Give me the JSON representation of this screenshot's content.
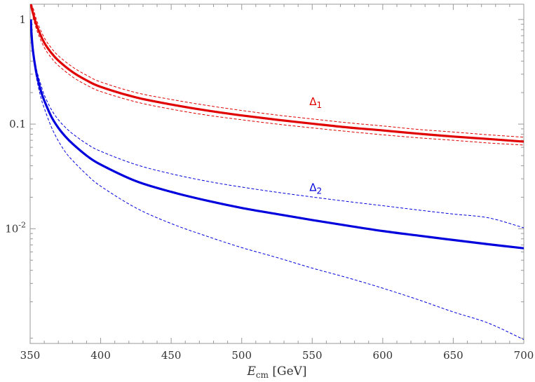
{
  "chart_data": {
    "type": "line",
    "xlabel_main": "E",
    "xlabel_sub": "cm",
    "xlabel_unit": " [GeV]",
    "ylabel": "",
    "xlim": [
      350,
      700
    ],
    "ylim": [
      0.0008,
      1.4
    ],
    "yscale": "log",
    "grid": false,
    "x_ticks": [
      350,
      400,
      450,
      500,
      550,
      600,
      650,
      700
    ],
    "y_ticks": [
      {
        "value": 1,
        "label": "1"
      },
      {
        "value": 0.1,
        "label": "0.1"
      },
      {
        "value": 0.01,
        "label_base": "10",
        "label_exp": "-2"
      }
    ],
    "colors": {
      "delta1": "#e00000",
      "delta2": "#0000dd",
      "frame": "#999999"
    },
    "curve_labels": [
      {
        "series": "delta1",
        "symbol": "Δ",
        "sub": "1",
        "x": 548,
        "y": 0.152,
        "color": "#e00000"
      },
      {
        "series": "delta2",
        "symbol": "Δ",
        "sub": "2",
        "x": 548,
        "y": 0.023,
        "color": "#0000dd"
      }
    ],
    "series": [
      {
        "key": "delta1",
        "style": "solid",
        "width": 3.2,
        "color": "#e00000",
        "x": [
          350.5,
          352,
          355,
          360,
          365,
          370,
          380,
          390,
          400,
          425,
          450,
          475,
          500,
          525,
          550,
          575,
          600,
          625,
          650,
          675,
          700
        ],
        "y": [
          1.4,
          1.15,
          0.85,
          0.6,
          0.48,
          0.405,
          0.315,
          0.262,
          0.227,
          0.18,
          0.154,
          0.135,
          0.121,
          0.11,
          0.101,
          0.093,
          0.087,
          0.081,
          0.076,
          0.072,
          0.068
        ]
      },
      {
        "key": "delta1_upper",
        "style": "dashed",
        "width": 1,
        "color": "#e00000",
        "x": [
          350.5,
          352,
          355,
          360,
          365,
          370,
          380,
          390,
          400,
          425,
          450,
          475,
          500,
          525,
          550,
          575,
          600,
          625,
          650,
          675,
          700
        ],
        "y": [
          1.4,
          1.3,
          0.95,
          0.67,
          0.535,
          0.45,
          0.352,
          0.293,
          0.253,
          0.2,
          0.172,
          0.151,
          0.135,
          0.122,
          0.112,
          0.103,
          0.096,
          0.089,
          0.084,
          0.079,
          0.075
        ]
      },
      {
        "key": "delta1_lower",
        "style": "dashed",
        "width": 1,
        "color": "#e00000",
        "x": [
          352,
          355,
          360,
          365,
          370,
          380,
          390,
          400,
          425,
          450,
          475,
          500,
          525,
          550,
          575,
          600,
          625,
          650,
          675,
          700
        ],
        "y": [
          1.05,
          0.77,
          0.54,
          0.43,
          0.363,
          0.283,
          0.236,
          0.205,
          0.163,
          0.139,
          0.122,
          0.11,
          0.1,
          0.092,
          0.085,
          0.079,
          0.074,
          0.07,
          0.066,
          0.063
        ]
      },
      {
        "key": "delta2",
        "style": "solid",
        "width": 3.2,
        "color": "#0000dd",
        "x": [
          350.5,
          351,
          352,
          354,
          356,
          358,
          360,
          365,
          370,
          375,
          380,
          390,
          400,
          425,
          450,
          475,
          500,
          525,
          550,
          575,
          600,
          625,
          650,
          675,
          700
        ],
        "y": [
          1.0,
          0.72,
          0.5,
          0.33,
          0.25,
          0.2,
          0.168,
          0.118,
          0.092,
          0.076,
          0.065,
          0.05,
          0.041,
          0.0285,
          0.0225,
          0.0186,
          0.0158,
          0.0138,
          0.0121,
          0.0107,
          0.0095,
          0.0086,
          0.0078,
          0.0071,
          0.0065
        ]
      },
      {
        "key": "delta2_upper",
        "style": "dashed",
        "width": 1,
        "color": "#0000dd",
        "x": [
          350.5,
          351,
          352,
          354,
          356,
          358,
          360,
          365,
          370,
          375,
          380,
          390,
          400,
          425,
          450,
          475,
          500,
          525,
          550,
          575,
          600,
          625,
          650,
          675,
          700
        ],
        "y": [
          1.0,
          0.76,
          0.54,
          0.36,
          0.28,
          0.23,
          0.19,
          0.138,
          0.11,
          0.093,
          0.081,
          0.065,
          0.055,
          0.041,
          0.0335,
          0.0285,
          0.025,
          0.0223,
          0.0201,
          0.0182,
          0.0166,
          0.0151,
          0.0138,
          0.0127,
          0.0102
        ]
      },
      {
        "key": "delta2_lower",
        "style": "dashed",
        "width": 1,
        "color": "#0000dd",
        "x": [
          350.5,
          351,
          352,
          354,
          356,
          358,
          360,
          365,
          370,
          375,
          380,
          390,
          400,
          425,
          450,
          475,
          500,
          525,
          550,
          575,
          600,
          625,
          650,
          675,
          700
        ],
        "y": [
          1.0,
          0.68,
          0.46,
          0.3,
          0.22,
          0.172,
          0.142,
          0.094,
          0.069,
          0.054,
          0.045,
          0.033,
          0.0255,
          0.0158,
          0.0112,
          0.0085,
          0.0066,
          0.0053,
          0.0042,
          0.0034,
          0.0027,
          0.0021,
          0.0016,
          0.00125,
          0.00087
        ]
      }
    ]
  }
}
